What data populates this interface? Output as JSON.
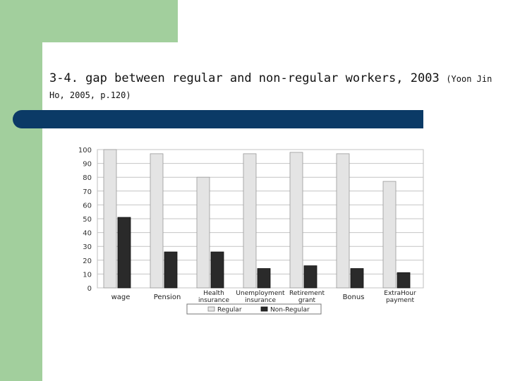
{
  "slide": {
    "title_main": "3-4. gap between regular and non-regular workers, 2003",
    "title_source": "(Yoon Jin Ho, 2005, p.120)",
    "colors": {
      "green": "#a2cf9d",
      "blue_bar": "#0b3a66"
    }
  },
  "chart_data": {
    "type": "bar",
    "title": "",
    "xlabel": "",
    "ylabel": "",
    "ylim": [
      0,
      100
    ],
    "yticks": [
      0,
      10,
      20,
      30,
      40,
      50,
      60,
      70,
      80,
      90,
      100
    ],
    "grid": true,
    "legend_position": "bottom",
    "categories": [
      "wage",
      "Pension",
      "Health insurance",
      "Unemployment insurance",
      "Retirement grant",
      "Bonus",
      "ExtraHour payment"
    ],
    "category_lines": [
      [
        "wage"
      ],
      [
        "Pension"
      ],
      [
        "Health",
        "insurance"
      ],
      [
        "Unemployment",
        "insurance"
      ],
      [
        "Retirement",
        "grant"
      ],
      [
        "Bonus"
      ],
      [
        "ExtraHour",
        "payment"
      ]
    ],
    "series": [
      {
        "name": "Regular",
        "values": [
          100,
          97,
          80,
          97,
          98,
          97,
          77
        ],
        "color": "#e4e4e4"
      },
      {
        "name": "Non-Regular",
        "values": [
          51,
          26,
          26,
          14,
          16,
          14,
          11
        ],
        "color": "#2a2a2a"
      }
    ]
  }
}
